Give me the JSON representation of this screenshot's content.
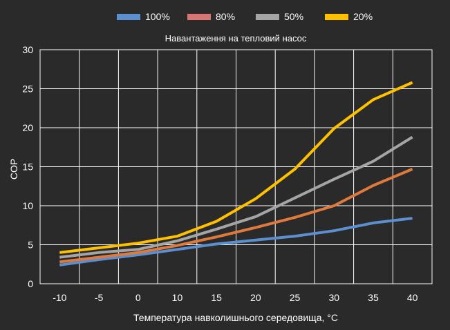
{
  "chart_data": {
    "type": "line",
    "title": "Навантаження на тепловий насос",
    "xlabel": "Температура навколишнього середовища, °C",
    "ylabel": "COP",
    "x": [
      -10,
      -5,
      0,
      10,
      15,
      20,
      25,
      30,
      35,
      40
    ],
    "x_ticks": [
      "-10",
      "-5",
      "0",
      "10",
      "15",
      "20",
      "25",
      "30",
      "35",
      "40"
    ],
    "y_ticks": [
      "0",
      "5",
      "10",
      "15",
      "20",
      "25",
      "30"
    ],
    "ylim": [
      0,
      30
    ],
    "grid": true,
    "legend_position": "top",
    "series": [
      {
        "name": "100%",
        "color": "#5b8fd0",
        "legend_color": "#5b8fd0",
        "values": [
          2.4,
          3.1,
          3.7,
          4.4,
          5.1,
          5.6,
          6.1,
          6.8,
          7.8,
          8.4
        ]
      },
      {
        "name": "80%",
        "color": "#e07a3c",
        "legend_color": "#d87676",
        "values": [
          2.8,
          3.4,
          4.0,
          4.9,
          6.0,
          7.2,
          8.5,
          10.0,
          12.6,
          14.7
        ]
      },
      {
        "name": "50%",
        "color": "#a5a5a5",
        "legend_color": "#a5a5a5",
        "values": [
          3.4,
          4.0,
          4.4,
          5.5,
          7.0,
          8.6,
          11.0,
          13.4,
          15.7,
          18.8
        ]
      },
      {
        "name": "20%",
        "color": "#ffc000",
        "legend_color": "#ffc000",
        "values": [
          4.0,
          4.6,
          5.2,
          6.1,
          8.0,
          10.9,
          14.7,
          19.9,
          23.6,
          25.8
        ]
      }
    ]
  }
}
